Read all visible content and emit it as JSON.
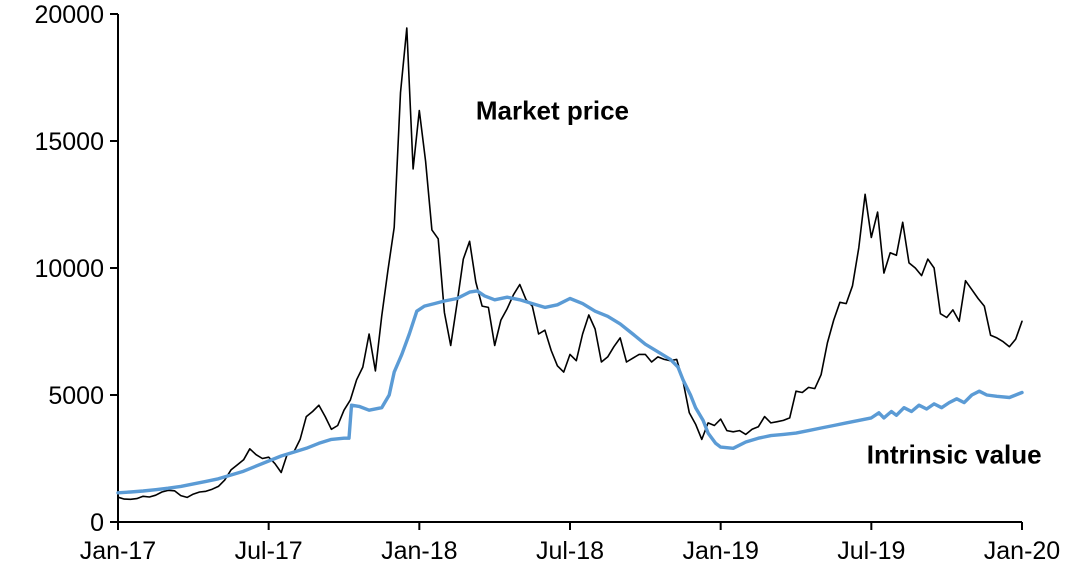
{
  "chart_data": {
    "type": "line",
    "title": "",
    "xlabel": "",
    "ylabel": "",
    "grid": false,
    "legend_position": "inline-annotations",
    "x_axis": {
      "range": [
        0,
        36
      ],
      "ticks": [
        {
          "label": "Jan-17",
          "x": 0
        },
        {
          "label": "Jul-17",
          "x": 6
        },
        {
          "label": "Jan-18",
          "x": 12
        },
        {
          "label": "Jul-18",
          "x": 18
        },
        {
          "label": "Jan-19",
          "x": 24
        },
        {
          "label": "Jul-19",
          "x": 30
        },
        {
          "label": "Jan-20",
          "x": 36
        }
      ]
    },
    "y_axis": {
      "range": [
        0,
        20000
      ],
      "ticks": [
        {
          "label": "0",
          "y": 0
        },
        {
          "label": "5000",
          "y": 5000
        },
        {
          "label": "10000",
          "y": 10000
        },
        {
          "label": "15000",
          "y": 15000
        },
        {
          "label": "20000",
          "y": 20000
        }
      ]
    },
    "annotations": [
      {
        "text": "Market price",
        "x": 17.3,
        "y": 16200,
        "color": "#1f2430"
      },
      {
        "text": "Intrinsic value",
        "x": 33.3,
        "y": 2650,
        "color": "#5B9BD5"
      }
    ],
    "series": [
      {
        "name": "Market price",
        "color": "#000000",
        "stroke_width": 1.6,
        "x_start": 0,
        "x_step": 0.25,
        "values": [
          975,
          900,
          895,
          920,
          1010,
          985,
          1055,
          1180,
          1250,
          1230,
          1040,
          970,
          1100,
          1180,
          1210,
          1290,
          1400,
          1650,
          2050,
          2250,
          2450,
          2880,
          2650,
          2500,
          2550,
          2300,
          1950,
          2700,
          2750,
          3250,
          4150,
          4350,
          4600,
          4150,
          3650,
          3800,
          4400,
          4800,
          5600,
          6100,
          7400,
          5950,
          8100,
          9900,
          11600,
          16900,
          19450,
          13900,
          16200,
          14200,
          11500,
          11150,
          8250,
          6950,
          8600,
          10350,
          11050,
          9450,
          8500,
          8450,
          6950,
          7950,
          8400,
          8950,
          9350,
          8750,
          8500,
          7400,
          7550,
          6750,
          6150,
          5900,
          6600,
          6350,
          7400,
          8150,
          7600,
          6300,
          6500,
          6900,
          7250,
          6300,
          6450,
          6600,
          6600,
          6300,
          6500,
          6400,
          6350,
          6400,
          5550,
          4300,
          3850,
          3250,
          3900,
          3800,
          4050,
          3600,
          3550,
          3600,
          3450,
          3650,
          3750,
          4150,
          3900,
          3950,
          4000,
          4100,
          5150,
          5100,
          5300,
          5250,
          5800,
          7050,
          7950,
          8650,
          8600,
          9300,
          10800,
          12900,
          11200,
          12200,
          9800,
          10600,
          10500,
          11800,
          10200,
          10000,
          9700,
          10350,
          10000,
          8200,
          8050,
          8350,
          7900,
          9500,
          9150,
          8800,
          8500,
          7350,
          7250,
          7100,
          6900,
          7200,
          7900
        ]
      },
      {
        "name": "Intrinsic value",
        "color": "#5B9BD5",
        "stroke_width": 3.4,
        "points": [
          [
            0,
            1150
          ],
          [
            0.5,
            1180
          ],
          [
            1,
            1220
          ],
          [
            1.5,
            1270
          ],
          [
            2,
            1330
          ],
          [
            2.5,
            1400
          ],
          [
            3,
            1500
          ],
          [
            3.5,
            1600
          ],
          [
            4,
            1700
          ],
          [
            4.5,
            1850
          ],
          [
            5,
            2000
          ],
          [
            5.5,
            2200
          ],
          [
            6,
            2400
          ],
          [
            6.5,
            2600
          ],
          [
            7,
            2750
          ],
          [
            7.5,
            2900
          ],
          [
            8,
            3100
          ],
          [
            8.5,
            3250
          ],
          [
            9,
            3300
          ],
          [
            9.2,
            3300
          ],
          [
            9.3,
            4600
          ],
          [
            9.6,
            4550
          ],
          [
            10,
            4400
          ],
          [
            10.5,
            4500
          ],
          [
            10.8,
            5000
          ],
          [
            11,
            5900
          ],
          [
            11.3,
            6600
          ],
          [
            11.6,
            7400
          ],
          [
            11.9,
            8300
          ],
          [
            12.2,
            8500
          ],
          [
            12.6,
            8600
          ],
          [
            13,
            8700
          ],
          [
            13.5,
            8800
          ],
          [
            14,
            9050
          ],
          [
            14.3,
            9100
          ],
          [
            14.6,
            8900
          ],
          [
            15,
            8750
          ],
          [
            15.5,
            8850
          ],
          [
            16,
            8750
          ],
          [
            16.5,
            8600
          ],
          [
            17,
            8450
          ],
          [
            17.5,
            8550
          ],
          [
            18,
            8800
          ],
          [
            18.5,
            8600
          ],
          [
            19,
            8300
          ],
          [
            19.5,
            8100
          ],
          [
            20,
            7800
          ],
          [
            20.5,
            7400
          ],
          [
            21,
            7000
          ],
          [
            21.5,
            6700
          ],
          [
            22,
            6400
          ],
          [
            22.3,
            6100
          ],
          [
            22.5,
            5600
          ],
          [
            22.8,
            5000
          ],
          [
            23,
            4500
          ],
          [
            23.3,
            4000
          ],
          [
            23.5,
            3500
          ],
          [
            23.8,
            3100
          ],
          [
            24,
            2950
          ],
          [
            24.5,
            2900
          ],
          [
            25,
            3150
          ],
          [
            25.5,
            3300
          ],
          [
            26,
            3400
          ],
          [
            26.5,
            3450
          ],
          [
            27,
            3500
          ],
          [
            27.5,
            3600
          ],
          [
            28,
            3700
          ],
          [
            28.5,
            3800
          ],
          [
            29,
            3900
          ],
          [
            29.5,
            4000
          ],
          [
            30,
            4100
          ],
          [
            30.3,
            4300
          ],
          [
            30.5,
            4100
          ],
          [
            30.8,
            4350
          ],
          [
            31,
            4200
          ],
          [
            31.3,
            4500
          ],
          [
            31.6,
            4350
          ],
          [
            31.9,
            4600
          ],
          [
            32.2,
            4450
          ],
          [
            32.5,
            4650
          ],
          [
            32.8,
            4500
          ],
          [
            33.1,
            4700
          ],
          [
            33.4,
            4850
          ],
          [
            33.7,
            4700
          ],
          [
            34,
            5000
          ],
          [
            34.3,
            5150
          ],
          [
            34.6,
            5000
          ],
          [
            35,
            4950
          ],
          [
            35.5,
            4900
          ],
          [
            36,
            5100
          ]
        ]
      }
    ]
  }
}
